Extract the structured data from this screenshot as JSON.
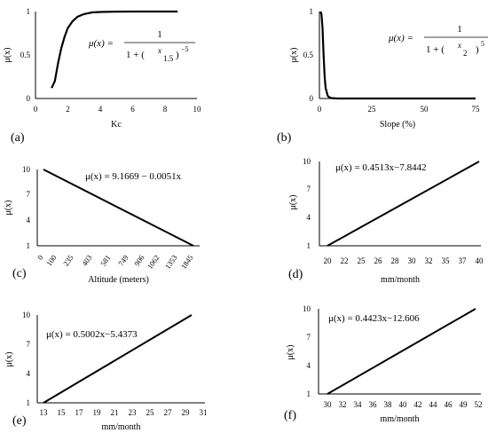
{
  "chart_data": [
    {
      "panel_label": "(a)",
      "type": "line",
      "xlabel": "Kc",
      "ylabel": "μ(x)",
      "xlim": [
        0,
        10
      ],
      "ylim": [
        0,
        1
      ],
      "xticks": [
        "0",
        "2",
        "4",
        "6",
        "8",
        "10"
      ],
      "yticks": [
        "0",
        "0.5",
        "1"
      ],
      "formula": "μ(x) = 1 / (1 + (x/1.5)^−5)",
      "formula_lhs": "μ(x) =",
      "formula_num": "1",
      "formula_den_prefix": "1 + (",
      "formula_frac_num": "x",
      "formula_frac_den": "1.5",
      "formula_den_suffix": ")",
      "formula_exp": "−5",
      "series": [
        {
          "x": [
            1.0,
            1.2,
            1.4,
            1.6,
            1.8,
            2.0,
            2.3,
            2.6,
            3.0,
            3.5,
            4.0,
            5.0,
            6.0,
            7.0,
            8.0,
            8.8
          ],
          "y": [
            0.12,
            0.2,
            0.41,
            0.58,
            0.71,
            0.81,
            0.89,
            0.94,
            0.97,
            0.99,
            0.995,
            0.999,
            1.0,
            1.0,
            1.0,
            1.0
          ]
        }
      ]
    },
    {
      "panel_label": "(b)",
      "type": "line",
      "xlabel": "Slope (%)",
      "ylabel": "μ(x)",
      "xlim": [
        0,
        75
      ],
      "ylim": [
        0,
        1
      ],
      "xticks": [
        "0",
        "25",
        "50",
        "75"
      ],
      "yticks": [
        "0",
        "0.5",
        "1"
      ],
      "formula": "μ(x) = 1 / (1 + (x/2)^5)",
      "formula_lhs": "μ(x) =",
      "formula_num": "1",
      "formula_den_prefix": "1 + (",
      "formula_frac_num": "x",
      "formula_frac_den": "2",
      "formula_den_suffix": ")",
      "formula_exp": "5",
      "series": [
        {
          "x": [
            0.5,
            1,
            1.5,
            2,
            2.5,
            3,
            4,
            5,
            6,
            8,
            10,
            15,
            20,
            30,
            45,
            75
          ],
          "y": [
            1.0,
            0.97,
            0.81,
            0.5,
            0.25,
            0.12,
            0.03,
            0.01,
            0.004,
            0.001,
            0.0003,
            0.0,
            0.0,
            0.0,
            0.0,
            0.0
          ]
        }
      ]
    },
    {
      "panel_label": "(c)",
      "type": "line",
      "xlabel": "Altitude (meters)",
      "ylabel": "μ(x)",
      "ylim": [
        1,
        10
      ],
      "xticks": [
        "0",
        "100",
        "235",
        "403",
        "581",
        "749",
        "906",
        "1062",
        "1353",
        "1845"
      ],
      "yticks": [
        "1",
        "4",
        "7",
        "10"
      ],
      "formula": "μ(x) = 9.1669 − 0.0051x",
      "series": [
        {
          "x_index": [
            0,
            9
          ],
          "y": [
            10,
            1
          ]
        }
      ]
    },
    {
      "panel_label": "(d)",
      "type": "line",
      "xlabel": "mm/month",
      "ylabel": "μ(x)",
      "ylim": [
        1,
        10
      ],
      "xticks": [
        "20",
        "22",
        "25",
        "26",
        "28",
        "30",
        "32",
        "35",
        "37",
        "40"
      ],
      "yticks": [
        "1",
        "4",
        "7",
        "10"
      ],
      "formula": "μ(x) = 0.4513x−7.8442",
      "series": [
        {
          "x_index": [
            0,
            9
          ],
          "y": [
            1,
            10
          ]
        }
      ]
    },
    {
      "panel_label": "(e)",
      "type": "line",
      "xlabel": "mm/month",
      "ylabel": "μ(x)",
      "ylim": [
        1,
        10
      ],
      "xticks": [
        "13",
        "15",
        "17",
        "19",
        "21",
        "23",
        "25",
        "27",
        "29",
        "31"
      ],
      "yticks": [
        "1",
        "4",
        "7",
        "10"
      ],
      "formula": "μ(x) = 0.5002x−5.4373",
      "series": [
        {
          "x_index": [
            0,
            9
          ],
          "y": [
            1,
            10
          ]
        }
      ]
    },
    {
      "panel_label": "(f)",
      "type": "line",
      "xlabel": "mm/month",
      "ylabel": "μ(x)",
      "ylim": [
        1,
        10
      ],
      "xticks": [
        "30",
        "32",
        "34",
        "36",
        "38",
        "40",
        "42",
        "44",
        "46",
        "49",
        "52"
      ],
      "yticks": [
        "1",
        "4",
        "7",
        "10"
      ],
      "formula": "μ(x) = 0.4423x−12.606",
      "series": [
        {
          "x_index": [
            0,
            10
          ],
          "y": [
            1,
            10
          ]
        }
      ]
    }
  ]
}
